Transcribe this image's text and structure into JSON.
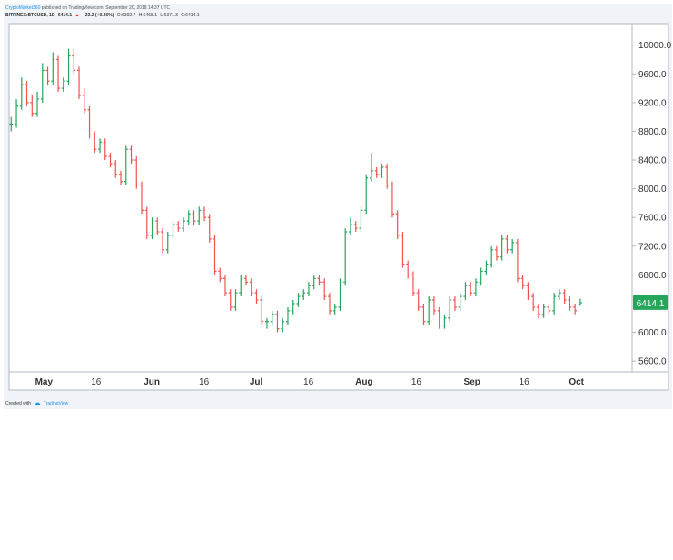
{
  "header": {
    "author": "CryptoMarket360",
    "published": "published on TradingView.com, September 20, 2018 14:37 UTC",
    "symbol": "BITFINEX:BTCUSD, 1D",
    "last": "6414.1",
    "change_arrow": "▲",
    "change": "+23.2 (+0.36%)",
    "ohlc_open": "O:6392.7",
    "ohlc_high": "H:6468.1",
    "ohlc_low": "L:6371.3",
    "ohlc_close": "C:6414.1"
  },
  "footer": {
    "created_with": "Created with",
    "brand": "TradingView"
  },
  "colors": {
    "up": "#26a65b",
    "down": "#ef5350",
    "last_price_badge": "#26a65b",
    "axis_text": "#333333",
    "grid_border": "#b0b8c0"
  },
  "chart_data": {
    "type": "ohlc",
    "title": "BITFINEX:BTCUSD, 1D",
    "ylabel": "",
    "xlabel": "",
    "ylim": [
      5450,
      10300
    ],
    "y_ticks": [
      "10000.0",
      "9600.0",
      "9200.0",
      "8800.0",
      "8400.0",
      "8000.0",
      "7600.0",
      "7200.0",
      "6800.0",
      "6000.0",
      "5600.0"
    ],
    "last_price_label": "6414.1",
    "x_labels": [
      {
        "text": "May",
        "date": "2018-05-01"
      },
      {
        "text": "16",
        "date": "2018-05-16"
      },
      {
        "text": "Jun",
        "date": "2018-06-01"
      },
      {
        "text": "16",
        "date": "2018-06-16"
      },
      {
        "text": "Jul",
        "date": "2018-07-01"
      },
      {
        "text": "16",
        "date": "2018-07-16"
      },
      {
        "text": "Aug",
        "date": "2018-08-01"
      },
      {
        "text": "16",
        "date": "2018-08-16"
      },
      {
        "text": "Sep",
        "date": "2018-09-01"
      },
      {
        "text": "16",
        "date": "2018-09-16"
      },
      {
        "text": "Oct",
        "date": "2018-10-01"
      }
    ],
    "x_start": "2018-04-21",
    "x_end": "2018-10-17",
    "grid": false,
    "close": [
      8900,
      9150,
      9450,
      9200,
      9050,
      9250,
      9650,
      9500,
      9800,
      9400,
      9500,
      9850,
      9650,
      9300,
      9100,
      8750,
      8550,
      8650,
      8450,
      8350,
      8200,
      8100,
      8550,
      8400,
      8050,
      7700,
      7350,
      7550,
      7400,
      7150,
      7350,
      7500,
      7450,
      7550,
      7650,
      7550,
      7700,
      7600,
      7300,
      6850,
      6750,
      6550,
      6350,
      6550,
      6750,
      6700,
      6550,
      6450,
      6150,
      6150,
      6250,
      6050,
      6150,
      6300,
      6400,
      6500,
      6550,
      6650,
      6750,
      6700,
      6500,
      6300,
      6350,
      6700,
      7400,
      7500,
      7450,
      7700,
      8150,
      8250,
      8200,
      8300,
      8050,
      7650,
      7350,
      6950,
      6800,
      6550,
      6350,
      6150,
      6450,
      6300,
      6100,
      6200,
      6450,
      6350,
      6500,
      6650,
      6550,
      6700,
      6850,
      6950,
      7150,
      7050,
      7300,
      7150,
      7250,
      6750,
      6650,
      6500,
      6350,
      6250,
      6350,
      6300,
      6500,
      6550,
      6450,
      6350,
      6300,
      6414.1
    ],
    "open": [
      8900,
      8900,
      9150,
      9450,
      9200,
      9050,
      9250,
      9650,
      9500,
      9800,
      9400,
      9500,
      9850,
      9650,
      9300,
      9100,
      8750,
      8550,
      8650,
      8450,
      8350,
      8200,
      8100,
      8550,
      8400,
      8050,
      7700,
      7350,
      7550,
      7400,
      7150,
      7350,
      7500,
      7450,
      7550,
      7650,
      7550,
      7700,
      7600,
      7300,
      6850,
      6750,
      6550,
      6350,
      6550,
      6750,
      6700,
      6550,
      6450,
      6150,
      6150,
      6250,
      6050,
      6150,
      6300,
      6400,
      6500,
      6550,
      6650,
      6750,
      6700,
      6500,
      6300,
      6350,
      6700,
      7400,
      7500,
      7450,
      7700,
      8150,
      8250,
      8200,
      8300,
      8050,
      7650,
      7350,
      6950,
      6800,
      6550,
      6350,
      6150,
      6450,
      6300,
      6100,
      6200,
      6450,
      6350,
      6500,
      6650,
      6550,
      6700,
      6850,
      6950,
      7150,
      7050,
      7300,
      7150,
      7250,
      6750,
      6650,
      6500,
      6350,
      6250,
      6350,
      6300,
      6500,
      6550,
      6450,
      6350,
      6392.7
    ],
    "high": [
      9000,
      9250,
      9550,
      9500,
      9300,
      9350,
      9750,
      9700,
      9900,
      9850,
      9550,
      9950,
      9950,
      9700,
      9400,
      9150,
      8800,
      8700,
      8700,
      8500,
      8400,
      8250,
      8600,
      8600,
      8450,
      8100,
      7750,
      7600,
      7600,
      7450,
      7400,
      7550,
      7550,
      7600,
      7700,
      7700,
      7750,
      7750,
      7650,
      7350,
      6900,
      6800,
      6600,
      6600,
      6800,
      6800,
      6750,
      6600,
      6500,
      6200,
      6300,
      6300,
      6200,
      6350,
      6450,
      6550,
      6600,
      6700,
      6800,
      6800,
      6750,
      6550,
      6400,
      6750,
      7450,
      7600,
      7550,
      7750,
      8200,
      8500,
      8300,
      8350,
      8350,
      8100,
      7700,
      7400,
      7000,
      6850,
      6600,
      6400,
      6500,
      6500,
      6350,
      6250,
      6500,
      6500,
      6550,
      6700,
      6700,
      6750,
      6900,
      7000,
      7200,
      7200,
      7350,
      7350,
      7300,
      7300,
      6800,
      6700,
      6550,
      6400,
      6400,
      6400,
      6550,
      6600,
      6600,
      6500,
      6400,
      6468.1
    ],
    "low": [
      8800,
      8850,
      9100,
      9150,
      9000,
      9000,
      9200,
      9450,
      9450,
      9350,
      9350,
      9450,
      9600,
      9250,
      9050,
      8700,
      8500,
      8500,
      8400,
      8300,
      8150,
      8050,
      8050,
      8350,
      8000,
      7650,
      7300,
      7300,
      7350,
      7100,
      7100,
      7300,
      7400,
      7400,
      7500,
      7500,
      7500,
      7550,
      7250,
      6800,
      6700,
      6500,
      6300,
      6300,
      6500,
      6650,
      6500,
      6400,
      6100,
      6050,
      6100,
      6000,
      6000,
      6100,
      6250,
      6350,
      6450,
      6500,
      6600,
      6650,
      6450,
      6250,
      6250,
      6300,
      6650,
      7350,
      7400,
      7400,
      7650,
      8100,
      8150,
      8150,
      8000,
      7600,
      7300,
      6900,
      6750,
      6500,
      6300,
      6100,
      6100,
      6250,
      6050,
      6050,
      6150,
      6300,
      6300,
      6450,
      6500,
      6500,
      6650,
      6800,
      6900,
      7000,
      7000,
      7100,
      7100,
      6700,
      6600,
      6450,
      6300,
      6200,
      6200,
      6250,
      6250,
      6450,
      6400,
      6300,
      6250,
      6371.3
    ]
  }
}
